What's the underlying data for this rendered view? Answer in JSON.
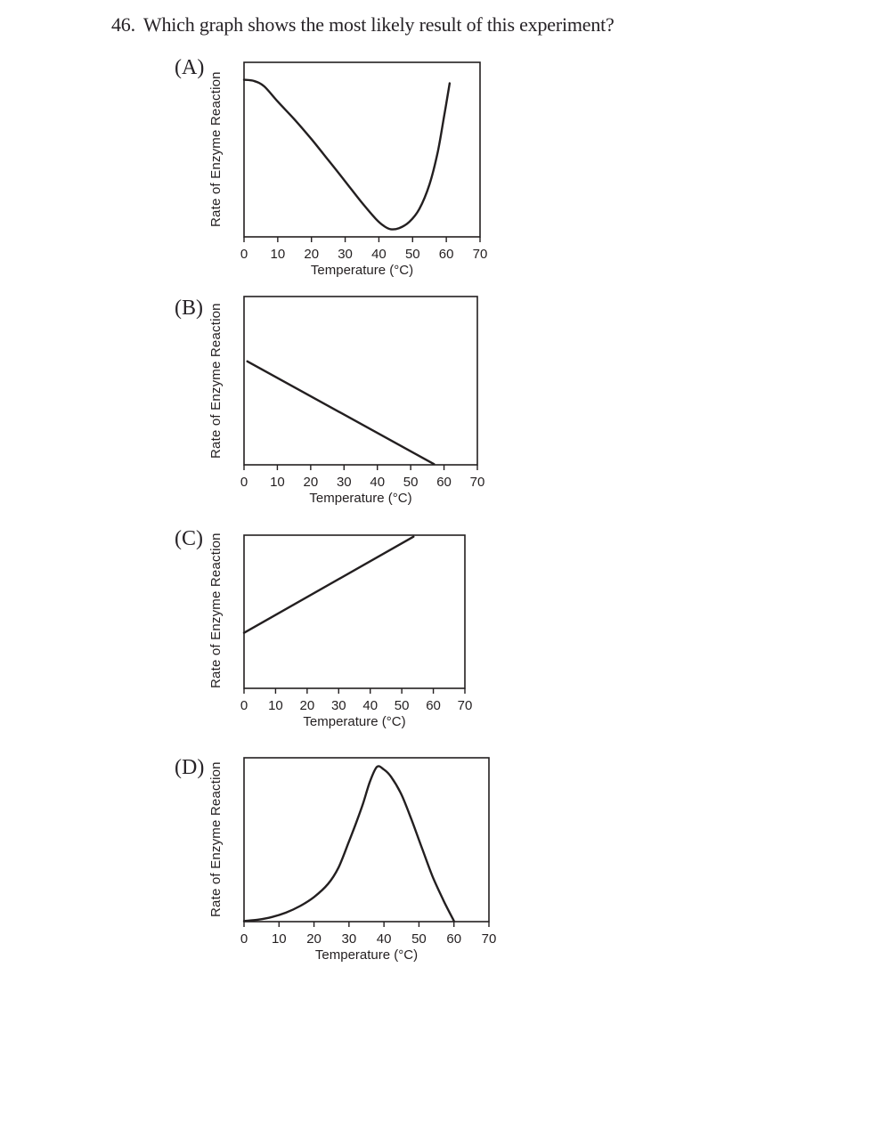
{
  "question": {
    "number": "46.",
    "text": "Which graph shows the most likely result of this experiment?"
  },
  "colors": {
    "ink": "#231f20",
    "paper": "#ffffff"
  },
  "chart_data": [
    {
      "option": "(A)",
      "type": "line",
      "shape": "u-curve",
      "shape_summary": "Rate starts high at 0°C, decreases to a minimum near 43°C, then rises steeply toward 60°C",
      "xlabel": "Temperature (°C)",
      "ylabel": "Rate of Enzyme Reaction",
      "xlim": [
        0,
        70
      ],
      "ylim": [
        0,
        1
      ],
      "x_ticks": [
        0,
        10,
        20,
        30,
        40,
        50,
        60,
        70
      ],
      "y_ticks": [],
      "grid": false,
      "legend": false,
      "points": [
        [
          0,
          0.9
        ],
        [
          3,
          0.893
        ],
        [
          6,
          0.862
        ],
        [
          10,
          0.775
        ],
        [
          15,
          0.672
        ],
        [
          20,
          0.56
        ],
        [
          25,
          0.44
        ],
        [
          30,
          0.318
        ],
        [
          35,
          0.195
        ],
        [
          39,
          0.105
        ],
        [
          41.5,
          0.062
        ],
        [
          43.5,
          0.044
        ],
        [
          46,
          0.05
        ],
        [
          49,
          0.085
        ],
        [
          52,
          0.16
        ],
        [
          55,
          0.3
        ],
        [
          57.5,
          0.49
        ],
        [
          59.5,
          0.71
        ],
        [
          61,
          0.88
        ]
      ]
    },
    {
      "option": "(B)",
      "type": "line",
      "shape": "decreasing-line",
      "shape_summary": "Rate decreases linearly from a moderate value at 0°C to zero near 57°C",
      "xlabel": "Temperature (°C)",
      "ylabel": "Rate of Enzyme Reaction",
      "xlim": [
        0,
        70
      ],
      "ylim": [
        0,
        1
      ],
      "x_ticks": [
        0,
        10,
        20,
        30,
        40,
        50,
        60,
        70
      ],
      "y_ticks": [],
      "grid": false,
      "legend": false,
      "points": [
        [
          1,
          0.615
        ],
        [
          57,
          0.004
        ]
      ]
    },
    {
      "option": "(C)",
      "type": "line",
      "shape": "increasing-line",
      "shape_summary": "Rate increases linearly from a low value at 0°C, reaching the top of the plot near 54°C",
      "xlabel": "Temperature (°C)",
      "ylabel": "Rate of Enzyme Reaction",
      "xlim": [
        0,
        70
      ],
      "ylim": [
        0,
        1
      ],
      "x_ticks": [
        0,
        10,
        20,
        30,
        40,
        50,
        60,
        70
      ],
      "y_ticks": [],
      "grid": false,
      "legend": false,
      "points": [
        [
          0,
          0.362
        ],
        [
          53.7,
          0.99
        ]
      ]
    },
    {
      "option": "(D)",
      "type": "line",
      "shape": "bell-curve",
      "shape_summary": "Rate near zero at 0°C, rises slowly then steeply to a peak near 38°C, then falls steeply to zero at 60°C",
      "xlabel": "Temperature (°C)",
      "ylabel": "Rate of Enzyme Reaction",
      "xlim": [
        0,
        70
      ],
      "ylim": [
        0,
        1
      ],
      "x_ticks": [
        0,
        10,
        20,
        30,
        40,
        50,
        60,
        70
      ],
      "y_ticks": [],
      "grid": false,
      "legend": false,
      "points": [
        [
          0,
          0.004
        ],
        [
          4,
          0.012
        ],
        [
          8,
          0.028
        ],
        [
          12,
          0.055
        ],
        [
          16,
          0.095
        ],
        [
          20,
          0.15
        ],
        [
          24,
          0.23
        ],
        [
          27,
          0.33
        ],
        [
          30,
          0.49
        ],
        [
          32,
          0.6
        ],
        [
          34,
          0.72
        ],
        [
          36,
          0.855
        ],
        [
          38,
          0.945
        ],
        [
          40,
          0.928
        ],
        [
          42,
          0.885
        ],
        [
          45,
          0.775
        ],
        [
          48,
          0.615
        ],
        [
          51,
          0.44
        ],
        [
          54,
          0.27
        ],
        [
          57,
          0.13
        ],
        [
          59,
          0.045
        ],
        [
          60,
          0.004
        ]
      ]
    }
  ]
}
